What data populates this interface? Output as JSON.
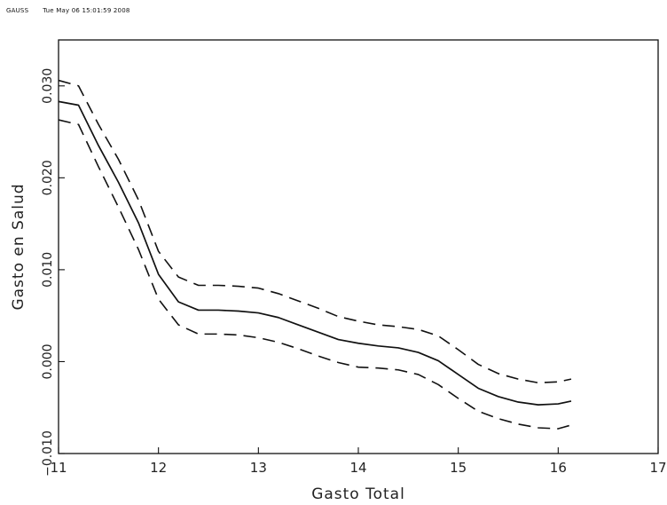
{
  "header": {
    "program": "GAUSS",
    "timestamp": "Tue May 06 15:01:59 2008"
  },
  "chart_data": {
    "type": "line",
    "title": "",
    "xlabel": "Gasto Total",
    "ylabel": "Gasto en Salud",
    "xlim": [
      11,
      17
    ],
    "ylim": [
      -0.01,
      0.035
    ],
    "xticks": [
      "11",
      "12",
      "13",
      "14",
      "15",
      "16",
      "17"
    ],
    "yticks": [
      "−0.010",
      "0.000",
      "0.010",
      "0.020",
      "0.030"
    ],
    "grid": false,
    "legend": "none",
    "series": [
      {
        "style": "solid",
        "x": [
          11.0,
          11.2,
          11.4,
          11.6,
          11.8,
          12.0,
          12.2,
          12.4,
          12.6,
          12.8,
          13.0,
          13.2,
          13.4,
          13.6,
          13.8,
          14.0,
          14.2,
          14.4,
          14.6,
          14.8,
          15.0,
          15.2,
          15.4,
          15.6,
          15.8,
          16.0,
          16.13
        ],
        "y": [
          0.0283,
          0.0279,
          0.0235,
          0.0195,
          0.0151,
          0.0095,
          0.0065,
          0.0056,
          0.0056,
          0.0055,
          0.0053,
          0.0048,
          0.004,
          0.0032,
          0.0024,
          0.002,
          0.0017,
          0.0015,
          0.001,
          0.0001,
          -0.0014,
          -0.0029,
          -0.0038,
          -0.0044,
          -0.0047,
          -0.0046,
          -0.0043
        ]
      },
      {
        "style": "dashed",
        "x": [
          11.0,
          11.2,
          11.4,
          11.6,
          11.8,
          12.0,
          12.2,
          12.4,
          12.6,
          12.8,
          13.0,
          13.2,
          13.4,
          13.6,
          13.8,
          14.0,
          14.2,
          14.4,
          14.6,
          14.8,
          15.0,
          15.2,
          15.4,
          15.6,
          15.8,
          16.0,
          16.13
        ],
        "y": [
          0.0306,
          0.03,
          0.0258,
          0.022,
          0.0176,
          0.012,
          0.0092,
          0.0083,
          0.0083,
          0.0082,
          0.008,
          0.0074,
          0.0066,
          0.0058,
          0.0049,
          0.0044,
          0.004,
          0.0038,
          0.0035,
          0.0028,
          0.0013,
          -0.0003,
          -0.0013,
          -0.0019,
          -0.0023,
          -0.0022,
          -0.0019
        ]
      },
      {
        "style": "dashed",
        "x": [
          11.0,
          11.2,
          11.4,
          11.6,
          11.8,
          12.0,
          12.2,
          12.4,
          12.6,
          12.8,
          13.0,
          13.2,
          13.4,
          13.6,
          13.8,
          14.0,
          14.2,
          14.4,
          14.6,
          14.8,
          15.0,
          15.2,
          15.4,
          15.6,
          15.8,
          16.0,
          16.13
        ],
        "y": [
          0.0263,
          0.0258,
          0.0212,
          0.0168,
          0.0122,
          0.0068,
          0.004,
          0.003,
          0.003,
          0.0029,
          0.0026,
          0.0021,
          0.0014,
          0.0006,
          -0.0001,
          -0.0006,
          -0.0007,
          -0.0009,
          -0.0014,
          -0.0025,
          -0.004,
          -0.0054,
          -0.0062,
          -0.0068,
          -0.0072,
          -0.0073,
          -0.0069
        ]
      }
    ]
  }
}
